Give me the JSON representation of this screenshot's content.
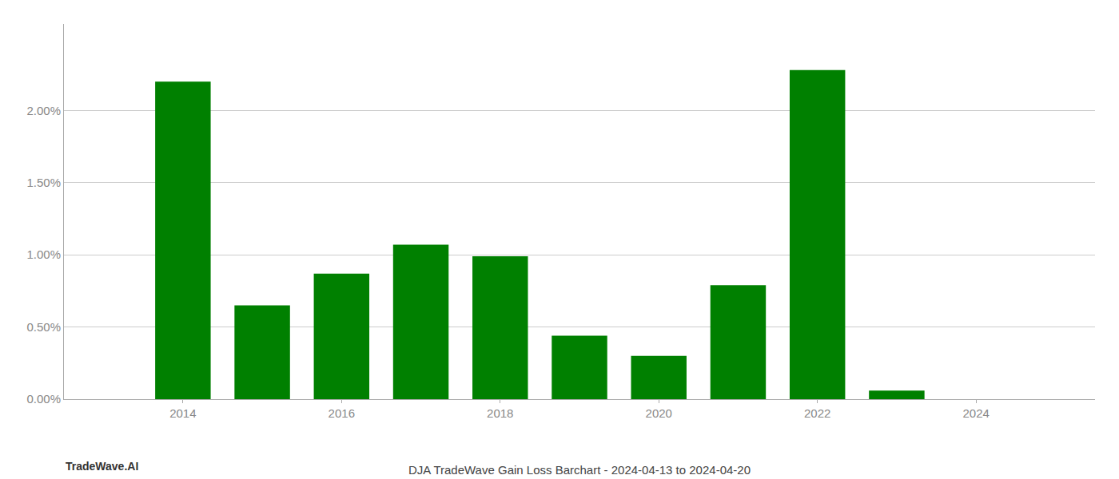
{
  "chart_data": {
    "type": "bar",
    "title": "DJA TradeWave Gain Loss Barchart - 2024-04-13 to 2024-04-20",
    "annotations": [
      "TradeWave.AI"
    ],
    "x": [
      2014,
      2015,
      2016,
      2017,
      2018,
      2019,
      2020,
      2021,
      2022,
      2023,
      2024
    ],
    "values": [
      2.2,
      0.65,
      0.87,
      1.07,
      0.99,
      0.44,
      0.3,
      0.79,
      2.28,
      0.06,
      0.0
    ],
    "color": "#008000",
    "xlim": [
      2012.5,
      2025.5
    ],
    "xticks": [
      2014,
      2016,
      2018,
      2020,
      2022,
      2024
    ],
    "ylim": [
      0,
      2.6
    ],
    "yticks": [
      {
        "value": 0.0,
        "label": "0.00%"
      },
      {
        "value": 0.5,
        "label": "0.50%"
      },
      {
        "value": 1.0,
        "label": "1.00%"
      },
      {
        "value": 1.5,
        "label": "1.50%"
      },
      {
        "value": 2.0,
        "label": "2.00%"
      }
    ],
    "grid": true
  }
}
